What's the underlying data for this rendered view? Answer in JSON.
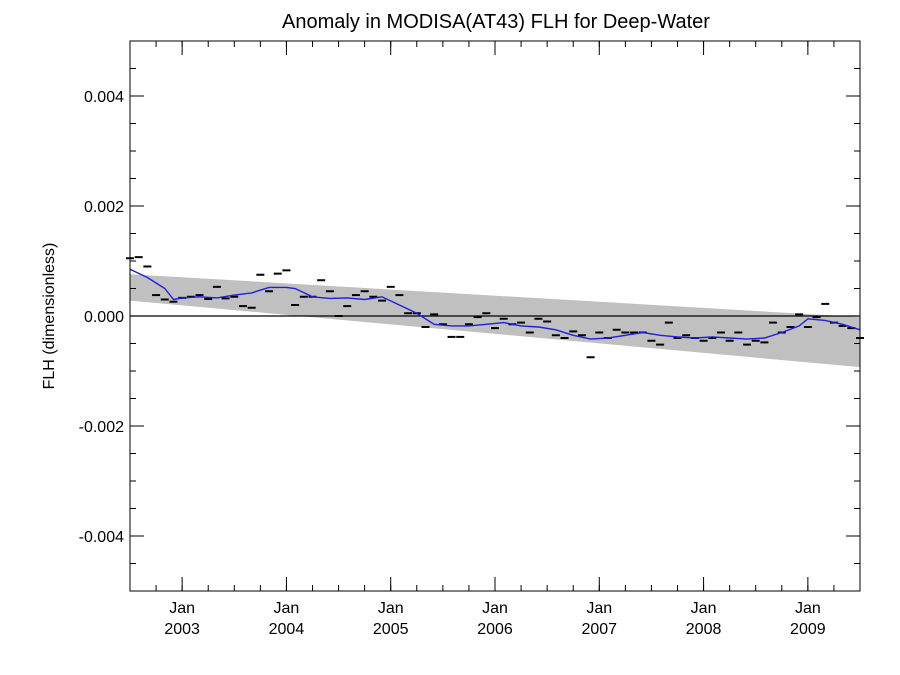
{
  "chart_data": {
    "type": "scatter",
    "title": "Anomaly in MODISA(AT43) FLH for Deep-Water",
    "xlabel": "",
    "ylabel": "FLH (dimensionless)",
    "ylim": [
      -0.005,
      0.005
    ],
    "xlim": [
      "2002-07-01",
      "2009-07-01"
    ],
    "y_ticks": [
      -0.004,
      -0.002,
      0.0,
      0.002,
      0.004
    ],
    "y_tick_labels": [
      "-0.004",
      "-0.002",
      "0.000",
      "0.002",
      "0.004"
    ],
    "x_ticks": [
      {
        "date": "2003-01-01",
        "month": "Jan",
        "year": "2003"
      },
      {
        "date": "2004-01-01",
        "month": "Jan",
        "year": "2004"
      },
      {
        "date": "2005-01-01",
        "month": "Jan",
        "year": "2005"
      },
      {
        "date": "2006-01-01",
        "month": "Jan",
        "year": "2006"
      },
      {
        "date": "2007-01-01",
        "month": "Jan",
        "year": "2007"
      },
      {
        "date": "2008-01-01",
        "month": "Jan",
        "year": "2008"
      },
      {
        "date": "2009-01-01",
        "month": "Jan",
        "year": "2009"
      }
    ],
    "zero_line": 0.0,
    "grid": false,
    "colors": {
      "line": "#1f1fdd",
      "band": "#c0c0c0",
      "points": "#000000",
      "zero": "#000000"
    },
    "band": {
      "start": {
        "date": "2002-07-01",
        "upper": 0.00076,
        "lower": 0.00028
      },
      "end": {
        "date": "2009-07-01",
        "upper": -2e-05,
        "lower": -0.00093
      }
    },
    "series": [
      {
        "points": [
          {
            "x": "2002-07",
            "y": 0.00105
          },
          {
            "x": "2002-08",
            "y": 0.00107
          },
          {
            "x": "2002-09",
            "y": 0.0009
          },
          {
            "x": "2002-10",
            "y": 0.00038
          },
          {
            "x": "2002-11",
            "y": 0.0003
          },
          {
            "x": "2002-12",
            "y": 0.00026
          },
          {
            "x": "2003-01",
            "y": 0.00033
          },
          {
            "x": "2003-02",
            "y": 0.00035
          },
          {
            "x": "2003-03",
            "y": 0.00038
          },
          {
            "x": "2003-04",
            "y": 0.00031
          },
          {
            "x": "2003-05",
            "y": 0.00053
          },
          {
            "x": "2003-06",
            "y": 0.00032
          },
          {
            "x": "2003-07",
            "y": 0.00035
          },
          {
            "x": "2003-08",
            "y": 0.00018
          },
          {
            "x": "2003-09",
            "y": 0.00015
          },
          {
            "x": "2003-10",
            "y": 0.00075
          },
          {
            "x": "2003-11",
            "y": 0.00045
          },
          {
            "x": "2003-12",
            "y": 0.00077
          },
          {
            "x": "2004-01",
            "y": 0.00083
          },
          {
            "x": "2004-02",
            "y": 0.0002
          },
          {
            "x": "2004-03",
            "y": 0.00035
          },
          {
            "x": "2004-04",
            "y": 0.00035
          },
          {
            "x": "2004-05",
            "y": 0.00065
          },
          {
            "x": "2004-06",
            "y": 0.00045
          },
          {
            "x": "2004-07",
            "y": 0.0
          },
          {
            "x": "2004-08",
            "y": 0.00018
          },
          {
            "x": "2004-09",
            "y": 0.00038
          },
          {
            "x": "2004-10",
            "y": 0.00045
          },
          {
            "x": "2004-11",
            "y": 0.00035
          },
          {
            "x": "2004-12",
            "y": 0.00028
          },
          {
            "x": "2005-01",
            "y": 0.00053
          },
          {
            "x": "2005-02",
            "y": 0.00038
          },
          {
            "x": "2005-03",
            "y": 5e-05
          },
          {
            "x": "2005-04",
            "y": 5e-05
          },
          {
            "x": "2005-05",
            "y": -0.0002
          },
          {
            "x": "2005-06",
            "y": 3e-05
          },
          {
            "x": "2005-07",
            "y": -0.00015
          },
          {
            "x": "2005-08",
            "y": -0.00038
          },
          {
            "x": "2005-09",
            "y": -0.00038
          },
          {
            "x": "2005-10",
            "y": -0.00015
          },
          {
            "x": "2005-11",
            "y": -2e-05
          },
          {
            "x": "2005-12",
            "y": 5e-05
          },
          {
            "x": "2006-01",
            "y": -0.00022
          },
          {
            "x": "2006-02",
            "y": -5e-05
          },
          {
            "x": "2006-03",
            "y": -0.00015
          },
          {
            "x": "2006-04",
            "y": -0.00012
          },
          {
            "x": "2006-05",
            "y": -0.0003
          },
          {
            "x": "2006-06",
            "y": -5e-05
          },
          {
            "x": "2006-07",
            "y": -0.0001
          },
          {
            "x": "2006-08",
            "y": -0.00035
          },
          {
            "x": "2006-09",
            "y": -0.0004
          },
          {
            "x": "2006-10",
            "y": -0.00028
          },
          {
            "x": "2006-11",
            "y": -0.00035
          },
          {
            "x": "2006-12",
            "y": -0.00075
          },
          {
            "x": "2007-01",
            "y": -0.0003
          },
          {
            "x": "2007-02",
            "y": -0.0004
          },
          {
            "x": "2007-03",
            "y": -0.00025
          },
          {
            "x": "2007-04",
            "y": -0.0003
          },
          {
            "x": "2007-05",
            "y": -0.0003
          },
          {
            "x": "2007-06",
            "y": -0.0003
          },
          {
            "x": "2007-07",
            "y": -0.00045
          },
          {
            "x": "2007-08",
            "y": -0.00052
          },
          {
            "x": "2007-09",
            "y": -0.00012
          },
          {
            "x": "2007-10",
            "y": -0.0004
          },
          {
            "x": "2007-11",
            "y": -0.00035
          },
          {
            "x": "2007-12",
            "y": -0.0004
          },
          {
            "x": "2008-01",
            "y": -0.00045
          },
          {
            "x": "2008-02",
            "y": -0.0004
          },
          {
            "x": "2008-03",
            "y": -0.0003
          },
          {
            "x": "2008-04",
            "y": -0.00045
          },
          {
            "x": "2008-05",
            "y": -0.0003
          },
          {
            "x": "2008-06",
            "y": -0.00052
          },
          {
            "x": "2008-07",
            "y": -0.00045
          },
          {
            "x": "2008-08",
            "y": -0.00048
          },
          {
            "x": "2008-09",
            "y": -0.00012
          },
          {
            "x": "2008-10",
            "y": -0.0003
          },
          {
            "x": "2008-11",
            "y": -0.0002
          },
          {
            "x": "2008-12",
            "y": 3e-05
          },
          {
            "x": "2009-01",
            "y": -0.0002
          },
          {
            "x": "2009-02",
            "y": -2e-05
          },
          {
            "x": "2009-03",
            "y": 0.00022
          },
          {
            "x": "2009-04",
            "y": -0.00012
          },
          {
            "x": "2009-05",
            "y": -0.00018
          },
          {
            "x": "2009-06",
            "y": -0.00022
          },
          {
            "x": "2009-07",
            "y": -0.0004
          }
        ]
      },
      {
        "type": "line",
        "points": [
          {
            "x": "2002-07",
            "y": 0.00085
          },
          {
            "x": "2002-09",
            "y": 0.0007
          },
          {
            "x": "2002-11",
            "y": 0.0005
          },
          {
            "x": "2002-12",
            "y": 0.0003
          },
          {
            "x": "2003-01",
            "y": 0.00033
          },
          {
            "x": "2003-03",
            "y": 0.00035
          },
          {
            "x": "2003-05",
            "y": 0.00033
          },
          {
            "x": "2003-07",
            "y": 0.00038
          },
          {
            "x": "2003-09",
            "y": 0.00042
          },
          {
            "x": "2003-11",
            "y": 0.00052
          },
          {
            "x": "2004-01",
            "y": 0.00052
          },
          {
            "x": "2004-02",
            "y": 0.0005
          },
          {
            "x": "2004-04",
            "y": 0.00035
          },
          {
            "x": "2004-06",
            "y": 0.00032
          },
          {
            "x": "2004-08",
            "y": 0.00033
          },
          {
            "x": "2004-10",
            "y": 0.0003
          },
          {
            "x": "2004-12",
            "y": 0.00035
          },
          {
            "x": "2005-02",
            "y": 0.0002
          },
          {
            "x": "2005-04",
            "y": 5e-05
          },
          {
            "x": "2005-06",
            "y": -0.00015
          },
          {
            "x": "2005-08",
            "y": -0.00018
          },
          {
            "x": "2005-10",
            "y": -0.00018
          },
          {
            "x": "2005-12",
            "y": -0.00015
          },
          {
            "x": "2006-02",
            "y": -0.00012
          },
          {
            "x": "2006-04",
            "y": -0.00018
          },
          {
            "x": "2006-06",
            "y": -0.0002
          },
          {
            "x": "2006-08",
            "y": -0.00025
          },
          {
            "x": "2006-10",
            "y": -0.00035
          },
          {
            "x": "2006-12",
            "y": -0.00042
          },
          {
            "x": "2007-02",
            "y": -0.0004
          },
          {
            "x": "2007-04",
            "y": -0.00035
          },
          {
            "x": "2007-06",
            "y": -0.0003
          },
          {
            "x": "2007-08",
            "y": -0.00035
          },
          {
            "x": "2007-10",
            "y": -0.00038
          },
          {
            "x": "2007-12",
            "y": -0.0004
          },
          {
            "x": "2008-02",
            "y": -0.00038
          },
          {
            "x": "2008-04",
            "y": -0.0004
          },
          {
            "x": "2008-06",
            "y": -0.00042
          },
          {
            "x": "2008-08",
            "y": -0.0004
          },
          {
            "x": "2008-10",
            "y": -0.0003
          },
          {
            "x": "2008-12",
            "y": -0.00018
          },
          {
            "x": "2009-01",
            "y": -5e-05
          },
          {
            "x": "2009-03",
            "y": -8e-05
          },
          {
            "x": "2009-05",
            "y": -0.00015
          },
          {
            "x": "2009-07",
            "y": -0.00025
          }
        ]
      }
    ]
  }
}
